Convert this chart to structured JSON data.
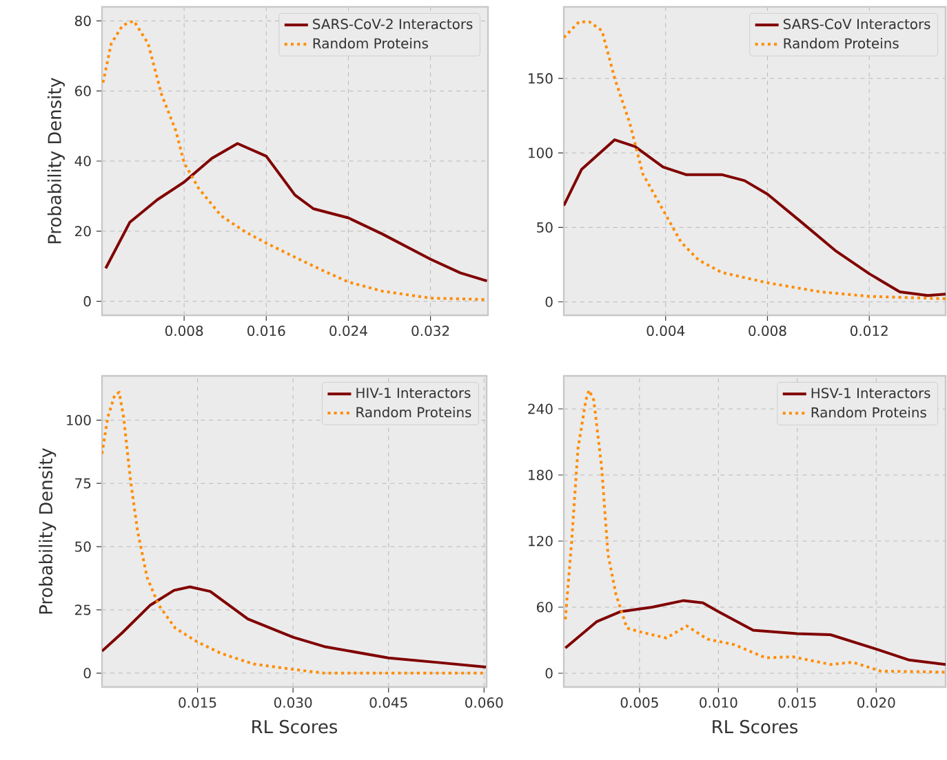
{
  "chart_data": [
    {
      "type": "line",
      "ylabel": "Probability Density",
      "xlim": [
        0,
        0.0376
      ],
      "ylim": [
        -4,
        84
      ],
      "xticks": [
        0.008,
        0.016,
        0.024,
        0.032
      ],
      "yticks": [
        0,
        20,
        40,
        60,
        80
      ],
      "grid": true,
      "legend": "top right",
      "series": [
        {
          "name": "SARS-CoV-2 Interactors",
          "color": "#800000",
          "line_style": "solid",
          "x": [
            0.00036,
            0.0027,
            0.0054,
            0.008,
            0.0107,
            0.0132,
            0.016,
            0.0188,
            0.0206,
            0.024,
            0.0273,
            0.032,
            0.0349,
            0.0375
          ],
          "values": [
            9.4,
            22.5,
            29,
            34,
            40.8,
            45,
            41.4,
            30.3,
            26.4,
            23.8,
            19.2,
            12,
            8.1,
            5.8
          ]
        },
        {
          "name": "Random Proteins",
          "color": "#ff8c00",
          "line_style": "dotted",
          "x": [
            0.0001,
            0.0009,
            0.002,
            0.0031,
            0.0045,
            0.0058,
            0.0072,
            0.008,
            0.0094,
            0.0116,
            0.0139,
            0.016,
            0.0192,
            0.0215,
            0.024,
            0.0273,
            0.032,
            0.0375
          ],
          "values": [
            62.4,
            73.5,
            78.7,
            80,
            73.5,
            59,
            48.6,
            39.5,
            32.3,
            24.4,
            19.9,
            16.6,
            12,
            8.8,
            5.5,
            2.9,
            0.9,
            0.5
          ]
        }
      ]
    },
    {
      "type": "line",
      "xlim": [
        0,
        0.015
      ],
      "ylim": [
        -9,
        198
      ],
      "xticks": [
        0.004,
        0.008,
        0.012
      ],
      "yticks": [
        0,
        50,
        100,
        150
      ],
      "grid": true,
      "legend": "top right",
      "series": [
        {
          "name": "SARS-CoV Interactors",
          "color": "#800000",
          "line_style": "solid",
          "x": [
            0,
            0.0007,
            0.002,
            0.0028,
            0.0039,
            0.0048,
            0.0062,
            0.0071,
            0.008,
            0.0093,
            0.0107,
            0.012,
            0.0132,
            0.0143,
            0.015
          ],
          "values": [
            64.6,
            89,
            108.8,
            104.3,
            90.5,
            85.4,
            85.4,
            81.4,
            72.3,
            54,
            34,
            18.9,
            6.7,
            4.3,
            5.2
          ]
        },
        {
          "name": "Random Proteins",
          "color": "#ff8c00",
          "line_style": "dotted",
          "x": [
            0,
            0.0006,
            0.001,
            0.0015,
            0.002,
            0.0026,
            0.0031,
            0.0039,
            0.0046,
            0.0053,
            0.0062,
            0.008,
            0.0101,
            0.012,
            0.015
          ],
          "values": [
            177.4,
            188,
            188,
            182,
            150,
            119.5,
            86,
            61.6,
            40.2,
            28,
            19.8,
            12.8,
            6.7,
            3.7,
            2.1
          ]
        }
      ]
    },
    {
      "type": "line",
      "xlabel": "RL Scores",
      "ylabel": "Probability Density",
      "xlim": [
        0,
        0.0604
      ],
      "ylim": [
        -5.5,
        117.5
      ],
      "xticks": [
        0.015,
        {
          "value": 0.03,
          "label": "0.030"
        },
        0.045,
        {
          "value": 0.06,
          "label": "0.060"
        }
      ],
      "yticks": [
        0,
        25,
        50,
        75,
        100
      ],
      "grid": true,
      "legend": "top right",
      "series": [
        {
          "name": "HIV-1 Interactors",
          "color": "#800000",
          "line_style": "solid",
          "x": [
            0,
            0.0032,
            0.0076,
            0.0113,
            0.0138,
            0.017,
            0.0229,
            0.03,
            0.0349,
            0.045,
            0.0528,
            0.0603
          ],
          "values": [
            8.7,
            16,
            26.9,
            32.7,
            34.1,
            32.3,
            21.4,
            14.2,
            10.5,
            6,
            4.2,
            2.4
          ]
        },
        {
          "name": "Random Proteins",
          "color": "#ff8c00",
          "line_style": "dotted",
          "x": [
            0,
            0.0009,
            0.002,
            0.0027,
            0.0034,
            0.0045,
            0.0056,
            0.0071,
            0.0089,
            0.0115,
            0.015,
            0.0187,
            0.0238,
            0.03,
            0.0349,
            0.0603
          ],
          "values": [
            86.7,
            101,
            110,
            111,
            101,
            75.8,
            55.9,
            37.7,
            26.9,
            17.8,
            12.3,
            7.8,
            3.6,
            1.5,
            0,
            0
          ]
        }
      ]
    },
    {
      "type": "line",
      "xlabel": "RL Scores",
      "xlim": [
        0.0002,
        0.0244
      ],
      "ylim": [
        -12.5,
        270
      ],
      "xticks": [
        0.005,
        {
          "value": 0.01,
          "label": "0.010"
        },
        0.015,
        {
          "value": 0.02,
          "label": "0.020"
        }
      ],
      "yticks": [
        0,
        60,
        120,
        180,
        240
      ],
      "grid": true,
      "legend": "top right",
      "series": [
        {
          "name": "HSV-1 Interactors",
          "color": "#800000",
          "line_style": "solid",
          "x": [
            0.0003,
            0.0023,
            0.0038,
            0.0058,
            0.0078,
            0.009,
            0.01,
            0.0122,
            0.015,
            0.0171,
            0.02,
            0.0221,
            0.0244
          ],
          "values": [
            23,
            47,
            56,
            60,
            66,
            64,
            56,
            39,
            36,
            35,
            22,
            12,
            8
          ]
        },
        {
          "name": "Random Proteins",
          "color": "#ff8c00",
          "line_style": "dotted",
          "x": [
            0.0003,
            0.0007,
            0.0011,
            0.0016,
            0.0018,
            0.0021,
            0.0026,
            0.003,
            0.0035,
            0.0042,
            0.0052,
            0.0067,
            0.008,
            0.0093,
            0.011,
            0.013,
            0.0147,
            0.0171,
            0.0185,
            0.0203,
            0.0244
          ],
          "values": [
            49,
            120,
            204,
            248,
            257,
            248,
            187,
            108,
            72,
            41,
            37,
            32,
            43,
            31,
            26,
            14,
            15,
            8,
            10,
            2,
            1
          ]
        }
      ]
    }
  ]
}
